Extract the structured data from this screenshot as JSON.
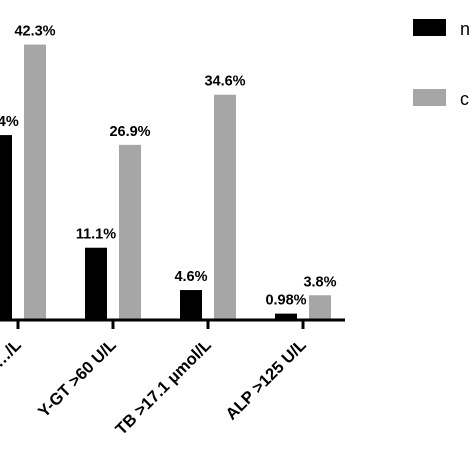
{
  "chart_data": {
    "type": "bar",
    "categories": [
      "…/L",
      "Y-GT >60 U/L",
      "TB >17.1 μmol/L",
      "ALP >125 U/L"
    ],
    "series": [
      {
        "name": "n",
        "color": "#000000",
        "values": [
          28.4,
          11.1,
          4.6,
          0.98
        ],
        "labels": [
          "…4%",
          "11.1%",
          "4.6%",
          "0.98%"
        ]
      },
      {
        "name": "c",
        "color": "#a6a6a6",
        "values": [
          42.3,
          26.9,
          34.6,
          3.8
        ],
        "labels": [
          "42.3%",
          "26.9%",
          "34.6%",
          "3.8%"
        ]
      }
    ],
    "ylim": [
      0,
      45
    ],
    "title": "",
    "xlabel": "",
    "ylabel": "",
    "legend_position": "top-right",
    "grid": false
  }
}
